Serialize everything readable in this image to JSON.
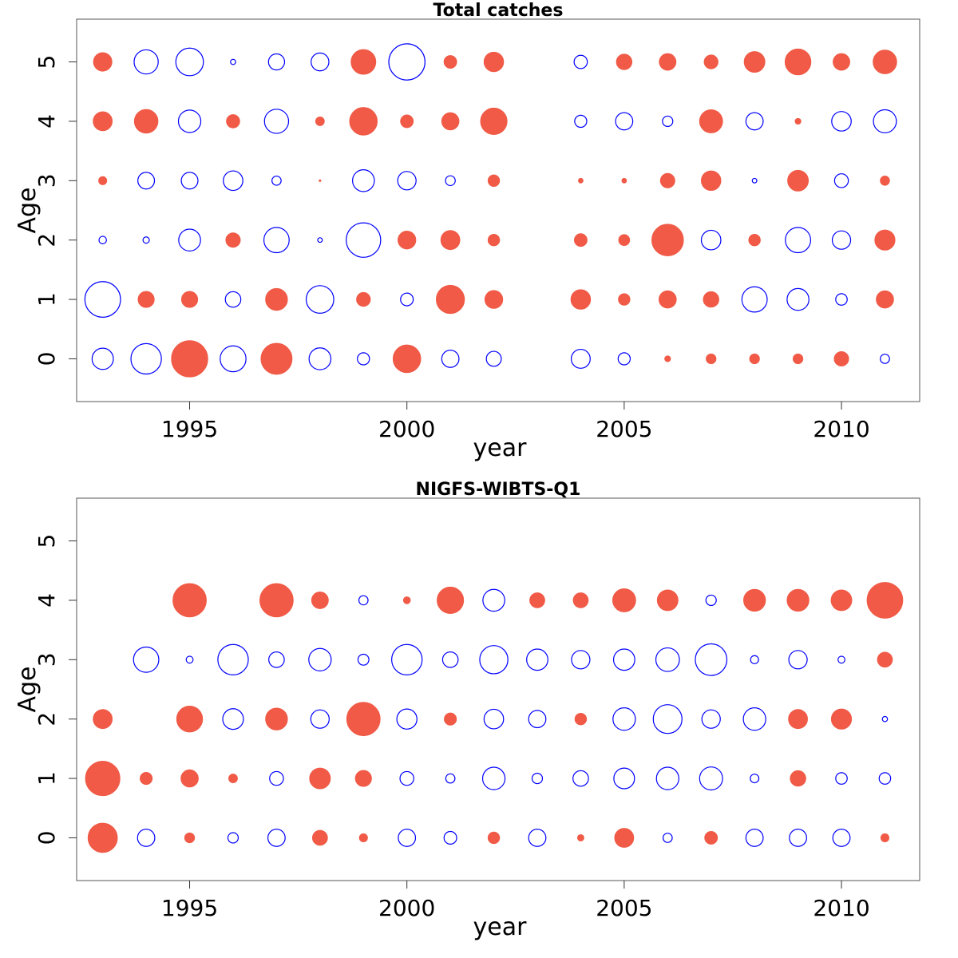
{
  "colors": {
    "positive": "#f05a46",
    "negative": "#0000ff"
  },
  "chart_data": [
    {
      "type": "scatter",
      "subtype": "bubble",
      "title": "Total catches",
      "xlabel": "year",
      "ylabel": "Age",
      "xlim": [
        1992.4,
        2011.8
      ],
      "ylim": [
        -0.72,
        5.72
      ],
      "xticks": [
        1995,
        2000,
        2005,
        2010
      ],
      "yticks": [
        0,
        1,
        2,
        3,
        4,
        5
      ],
      "years": [
        1993,
        1994,
        1995,
        1996,
        1997,
        1998,
        1999,
        2000,
        2001,
        2002,
        2004,
        2005,
        2006,
        2007,
        2008,
        2009,
        2010,
        2011
      ],
      "residuals": {
        "5": [
          0.32,
          -0.42,
          -0.48,
          -0.09,
          -0.28,
          -0.31,
          0.43,
          -0.63,
          0.22,
          0.34,
          -0.23,
          0.27,
          0.29,
          0.24,
          0.36,
          0.45,
          0.29,
          0.41
        ],
        "4": [
          0.33,
          0.41,
          -0.39,
          0.23,
          -0.42,
          0.15,
          0.48,
          0.22,
          0.3,
          0.46,
          -0.21,
          -0.3,
          -0.18,
          0.4,
          -0.3,
          0.1,
          -0.34,
          -0.4
        ],
        "3": [
          0.14,
          -0.29,
          -0.29,
          -0.34,
          -0.16,
          0.03,
          -0.38,
          -0.32,
          -0.17,
          0.2,
          0.08,
          0.08,
          0.25,
          0.34,
          -0.08,
          0.36,
          -0.24,
          0.16
        ],
        "2": [
          -0.13,
          -0.11,
          -0.38,
          0.25,
          -0.44,
          -0.08,
          -0.6,
          0.31,
          0.33,
          0.2,
          0.22,
          0.19,
          0.55,
          -0.34,
          0.2,
          -0.44,
          -0.32,
          0.35
        ],
        "1": [
          -0.62,
          0.28,
          0.28,
          -0.27,
          0.38,
          -0.48,
          0.24,
          -0.22,
          0.49,
          0.31,
          0.34,
          0.2,
          0.3,
          0.27,
          -0.44,
          -0.38,
          -0.2,
          0.3
        ],
        "0": [
          -0.37,
          -0.53,
          0.63,
          -0.45,
          0.54,
          -0.38,
          -0.21,
          0.48,
          -0.3,
          -0.26,
          -0.33,
          -0.21,
          0.1,
          0.17,
          0.17,
          0.17,
          0.25,
          -0.16
        ]
      }
    },
    {
      "type": "scatter",
      "subtype": "bubble",
      "title": "NIGFS-WIBTS-Q1",
      "xlabel": "year",
      "ylabel": "Age",
      "xlim": [
        1992.4,
        2011.8
      ],
      "ylim": [
        -0.72,
        5.72
      ],
      "xticks": [
        1995,
        2000,
        2005,
        2010
      ],
      "yticks": [
        0,
        1,
        2,
        3,
        4,
        5
      ],
      "years": [
        1993,
        1994,
        1995,
        1996,
        1997,
        1998,
        1999,
        2000,
        2001,
        2002,
        2003,
        2004,
        2005,
        2006,
        2007,
        2008,
        2009,
        2010,
        2011
      ],
      "residuals": {
        "5": [
          null,
          null,
          null,
          null,
          null,
          null,
          null,
          null,
          null,
          null,
          null,
          null,
          null,
          null,
          null,
          null,
          null,
          null,
          null
        ],
        "4": [
          null,
          null,
          0.58,
          null,
          0.58,
          0.29,
          -0.16,
          0.12,
          0.46,
          -0.38,
          0.26,
          0.26,
          0.4,
          0.36,
          -0.18,
          0.38,
          0.38,
          0.36,
          0.62
        ],
        "3": [
          null,
          -0.44,
          -0.12,
          -0.53,
          -0.27,
          -0.39,
          -0.19,
          -0.53,
          -0.27,
          -0.49,
          -0.37,
          -0.32,
          -0.37,
          -0.41,
          -0.55,
          -0.14,
          -0.32,
          -0.12,
          0.26
        ],
        "2": [
          0.33,
          null,
          0.45,
          -0.36,
          0.38,
          -0.32,
          0.58,
          -0.35,
          0.21,
          -0.34,
          -0.3,
          0.2,
          -0.39,
          -0.5,
          -0.32,
          -0.39,
          0.33,
          0.35,
          -0.09
        ],
        "1": [
          0.6,
          0.21,
          0.3,
          0.15,
          -0.24,
          0.36,
          0.28,
          -0.24,
          -0.16,
          -0.39,
          -0.18,
          -0.27,
          -0.36,
          -0.39,
          -0.4,
          -0.15,
          0.27,
          -0.2,
          -0.2
        ],
        "0": [
          0.51,
          -0.3,
          0.17,
          -0.18,
          -0.3,
          0.26,
          0.14,
          -0.3,
          -0.22,
          0.2,
          -0.3,
          0.11,
          0.33,
          -0.16,
          0.22,
          -0.3,
          -0.3,
          -0.3,
          0.14
        ]
      }
    }
  ]
}
